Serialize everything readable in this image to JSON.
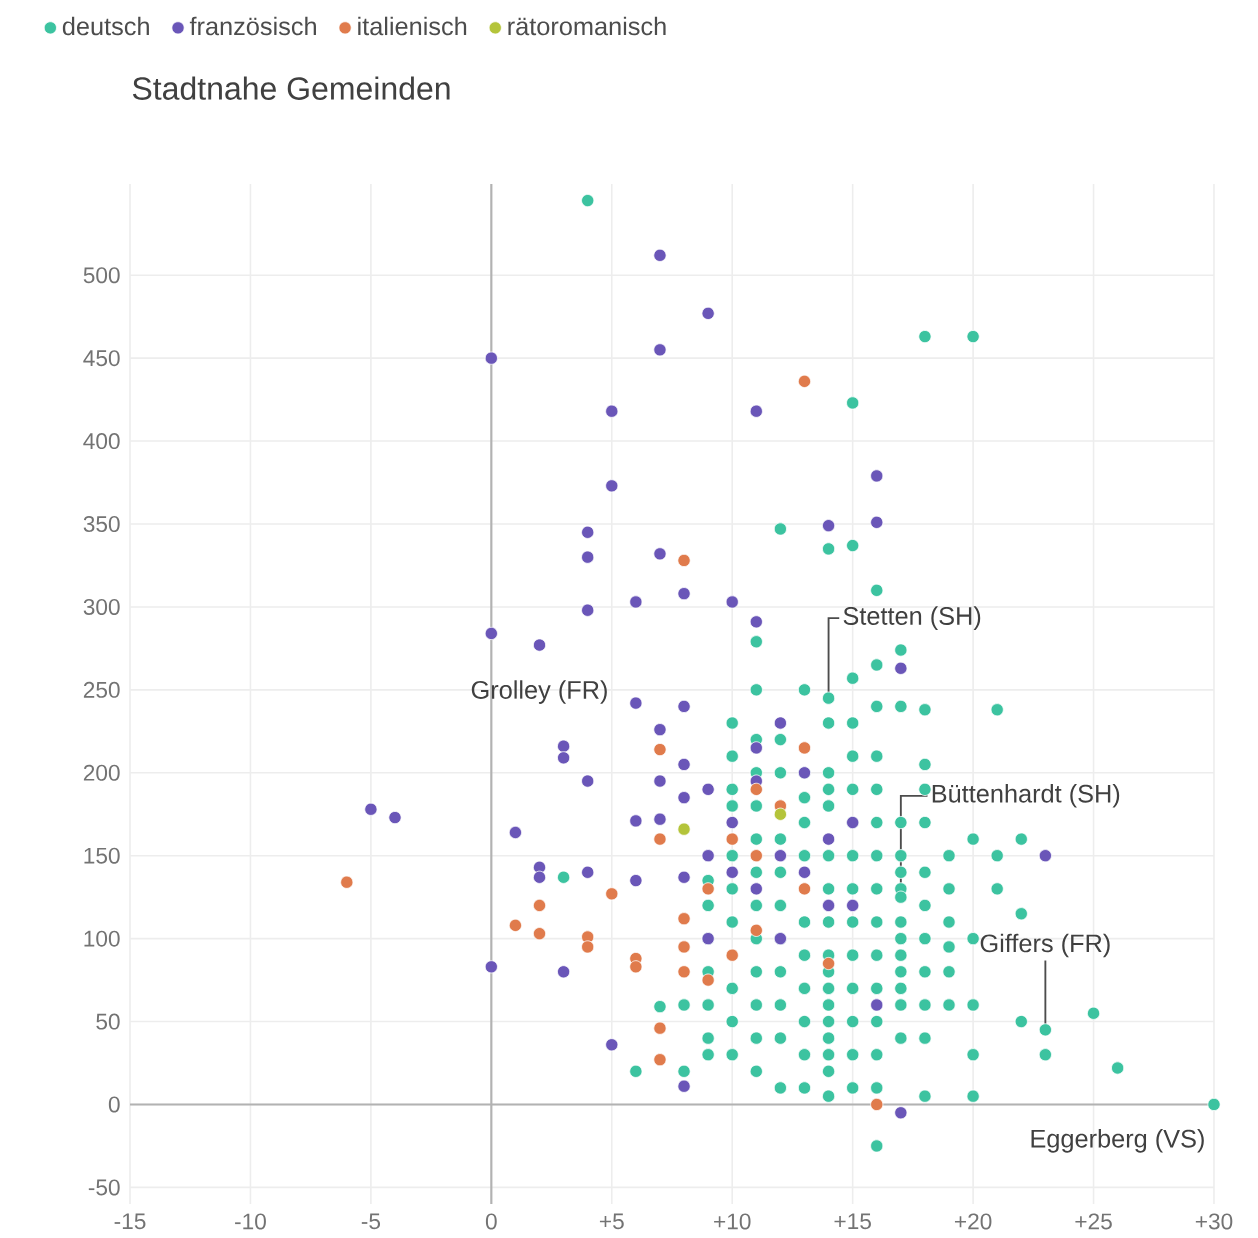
{
  "chart_data": {
    "type": "scatter",
    "title": "Stadtnahe Gemeinden",
    "xlim": [
      -15,
      30
    ],
    "ylim": [
      -60,
      555
    ],
    "xticks": [
      -15,
      -10,
      -5,
      0,
      {
        "value": 5,
        "label": "+5"
      },
      {
        "value": 10,
        "label": "+10"
      },
      {
        "value": 15,
        "label": "+15"
      },
      {
        "value": 20,
        "label": "+20"
      },
      {
        "value": 25,
        "label": "+25"
      },
      {
        "value": 30,
        "label": "+30"
      }
    ],
    "yticks": [
      -50,
      0,
      50,
      100,
      150,
      200,
      250,
      300,
      350,
      400,
      450,
      500
    ],
    "grid": true,
    "legend": "top left",
    "annotations": [
      {
        "text": "Grolley (FR)",
        "x": 2,
        "y": 277
      },
      {
        "text": "Stetten (SH)",
        "x": 14,
        "y": 245
      },
      {
        "text": "Büttenhardt (SH)",
        "x": 17,
        "y": 125
      },
      {
        "text": "Giffers (FR)",
        "x": 23,
        "y": 45
      },
      {
        "text": "Eggerberg (VS)",
        "x": 30,
        "y": 0
      }
    ],
    "series": [
      {
        "name": "deutsch",
        "color": "#3cc3a0",
        "x": [
          3,
          4,
          6,
          7,
          8,
          8,
          9,
          9,
          9,
          9,
          9,
          9,
          9,
          10,
          10,
          10,
          10,
          10,
          10,
          10,
          10,
          10,
          10,
          11,
          11,
          11,
          11,
          11,
          11,
          11,
          11,
          11,
          11,
          11,
          11,
          11,
          12,
          12,
          12,
          12,
          12,
          12,
          12,
          12,
          12,
          12,
          12,
          13,
          13,
          13,
          13,
          13,
          13,
          13,
          13,
          13,
          13,
          13,
          14,
          14,
          14,
          14,
          14,
          14,
          14,
          14,
          14,
          14,
          14,
          14,
          14,
          14,
          14,
          14,
          14,
          14,
          15,
          15,
          15,
          15,
          15,
          15,
          15,
          15,
          15,
          15,
          15,
          15,
          15,
          15,
          15,
          16,
          16,
          16,
          16,
          16,
          16,
          16,
          16,
          16,
          16,
          16,
          16,
          16,
          16,
          16,
          17,
          17,
          17,
          17,
          17,
          17,
          17,
          17,
          17,
          17,
          17,
          17,
          17,
          17,
          18,
          18,
          18,
          18,
          18,
          18,
          18,
          18,
          18,
          18,
          18,
          18,
          19,
          19,
          19,
          19,
          19,
          19,
          20,
          20,
          20,
          20,
          20,
          20,
          21,
          21,
          21,
          22,
          22,
          22,
          23,
          23,
          25,
          26,
          30
        ],
        "values": [
          137,
          545,
          20,
          59,
          20,
          60,
          135,
          120,
          100,
          80,
          60,
          40,
          30,
          230,
          210,
          190,
          180,
          150,
          130,
          110,
          70,
          50,
          30,
          279,
          250,
          220,
          200,
          180,
          160,
          140,
          120,
          100,
          80,
          60,
          40,
          20,
          347,
          220,
          200,
          160,
          140,
          120,
          100,
          80,
          60,
          40,
          10,
          250,
          200,
          185,
          170,
          150,
          110,
          90,
          70,
          50,
          30,
          10,
          335,
          245,
          230,
          200,
          190,
          180,
          150,
          130,
          110,
          90,
          80,
          70,
          60,
          50,
          40,
          30,
          20,
          5,
          423,
          337,
          257,
          230,
          210,
          190,
          170,
          150,
          130,
          110,
          90,
          70,
          50,
          30,
          10,
          310,
          265,
          240,
          210,
          190,
          170,
          150,
          130,
          110,
          90,
          70,
          50,
          30,
          10,
          -25,
          274,
          240,
          170,
          150,
          140,
          130,
          125,
          110,
          100,
          90,
          80,
          70,
          60,
          40,
          463,
          238,
          205,
          190,
          170,
          140,
          120,
          100,
          80,
          60,
          40,
          5,
          150,
          130,
          110,
          95,
          80,
          60,
          463,
          160,
          100,
          60,
          30,
          5,
          238,
          150,
          130,
          160,
          115,
          50,
          45,
          30,
          55,
          22,
          0
        ]
      },
      {
        "name": "französisch",
        "color": "#6a56b8",
        "x": [
          -5,
          -4,
          0,
          0,
          0,
          1,
          2,
          2,
          2,
          3,
          3,
          3,
          4,
          4,
          4,
          4,
          4,
          5,
          5,
          5,
          6,
          6,
          6,
          6,
          7,
          7,
          7,
          7,
          7,
          7,
          8,
          8,
          8,
          8,
          8,
          8,
          9,
          9,
          9,
          9,
          10,
          10,
          10,
          11,
          11,
          11,
          11,
          11,
          12,
          12,
          12,
          13,
          13,
          14,
          14,
          14,
          15,
          15,
          16,
          16,
          17,
          16,
          17,
          23
        ],
        "values": [
          178,
          173,
          450,
          284,
          83,
          164,
          143,
          137,
          277,
          216,
          209,
          80,
          345,
          330,
          298,
          195,
          140,
          418,
          373,
          36,
          303,
          242,
          171,
          135,
          512,
          455,
          332,
          226,
          195,
          172,
          308,
          240,
          205,
          185,
          137,
          11,
          477,
          190,
          150,
          100,
          303,
          170,
          140,
          418,
          291,
          215,
          195,
          130,
          230,
          150,
          100,
          200,
          140,
          349,
          160,
          120,
          170,
          120,
          351,
          379,
          263,
          60,
          -5,
          150
        ]
      },
      {
        "name": "italienisch",
        "color": "#e07b4c",
        "x": [
          -6,
          1,
          2,
          2,
          4,
          4,
          5,
          6,
          6,
          7,
          7,
          7,
          7,
          8,
          8,
          8,
          8,
          9,
          9,
          10,
          10,
          11,
          11,
          11,
          12,
          13,
          13,
          13,
          16,
          14
        ],
        "values": [
          134,
          108,
          120,
          103,
          101,
          95,
          127,
          88,
          83,
          214,
          160,
          46,
          27,
          328,
          112,
          95,
          80,
          130,
          75,
          160,
          90,
          190,
          150,
          105,
          180,
          436,
          215,
          130,
          0,
          85
        ]
      },
      {
        "name": "rätoromanisch",
        "color": "#b4c43a",
        "x": [
          8,
          12
        ],
        "values": [
          166,
          175
        ]
      }
    ]
  }
}
